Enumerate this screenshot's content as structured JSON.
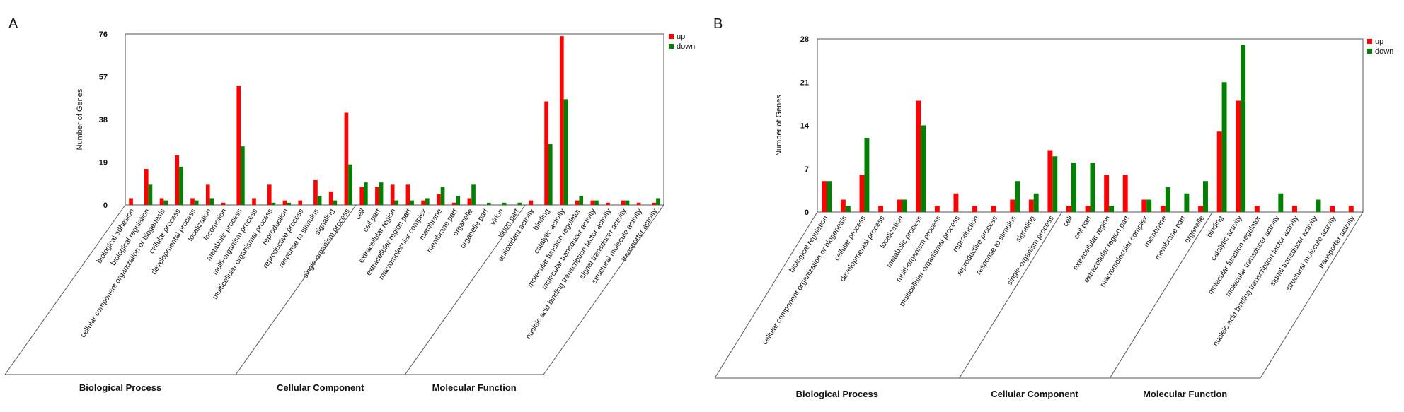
{
  "colors": {
    "up": "#ff0000",
    "down": "#008000",
    "axis": "#555555"
  },
  "chart_data": [
    {
      "panel": "A",
      "type": "bar",
      "title": "",
      "xlabel": "",
      "ylabel": "Number of Genes",
      "ylim": [
        0,
        76
      ],
      "yticks": [
        "0",
        "19",
        "38",
        "57",
        "76"
      ],
      "legend": [
        "up",
        "down"
      ],
      "categories": [
        "biological adhesion",
        "biological regulation",
        "cellular component organization or biogenesis",
        "cellular process",
        "developmental process",
        "localization",
        "locomotion",
        "metabolic process",
        "multi-organism process",
        "multicellular organismal process",
        "reproduction",
        "reproductive process",
        "response to stimulus",
        "signaling",
        "single-organism process",
        "cell",
        "cell part",
        "extracellular region",
        "extracellular region part",
        "macromolecular complex",
        "membrane",
        "membrane part",
        "organelle",
        "organelle part",
        "virion",
        "virion part",
        "antioxidant activity",
        "binding",
        "catalytic activity",
        "molecular function regulator",
        "molecular transducer activity",
        "nucleic acid binding transcription factor activity",
        "signal transducer activity",
        "structural molecule activity",
        "transporter activity"
      ],
      "series": [
        {
          "name": "up",
          "values": [
            3,
            16,
            3,
            22,
            3,
            9,
            1,
            53,
            3,
            9,
            2,
            2,
            11,
            6,
            41,
            8,
            8,
            9,
            9,
            2,
            5,
            1,
            3,
            0,
            0,
            0,
            2,
            46,
            75,
            2,
            2,
            1,
            2,
            1,
            1
          ]
        },
        {
          "name": "down",
          "values": [
            0,
            9,
            2,
            17,
            2,
            3,
            0,
            26,
            0,
            1,
            1,
            0,
            4,
            2,
            18,
            10,
            10,
            2,
            2,
            3,
            8,
            4,
            9,
            1,
            1,
            1,
            0,
            27,
            47,
            4,
            2,
            0,
            2,
            0,
            3
          ]
        }
      ],
      "groups": [
        {
          "label": "Biological Process",
          "start": 0,
          "end": 14
        },
        {
          "label": "Cellular Component",
          "start": 15,
          "end": 25
        },
        {
          "label": "Molecular Function",
          "start": 26,
          "end": 34
        }
      ]
    },
    {
      "panel": "B",
      "type": "bar",
      "title": "",
      "xlabel": "",
      "ylabel": "Number of Genes",
      "ylim": [
        0,
        28
      ],
      "yticks": [
        "0",
        "7",
        "14",
        "21",
        "28"
      ],
      "legend": [
        "up",
        "down"
      ],
      "categories": [
        "biological regulation",
        "cellular component organization or biogenesis",
        "cellular process",
        "developmental process",
        "localization",
        "metabolic process",
        "multi-organism process",
        "multicellular organismal process",
        "reproduction",
        "reproductive process",
        "response to stimulus",
        "signaling",
        "single-organism process",
        "cell",
        "cell part",
        "extracellular region",
        "extracellular region part",
        "macromolecular complex",
        "membrane",
        "membrane part",
        "organelle",
        "binding",
        "catalytic activity",
        "molecular function regulator",
        "molecular transducer activity",
        "nucleic acid binding transcription factor activity",
        "signal transducer activity",
        "structural molecule activity",
        "transporter activity"
      ],
      "series": [
        {
          "name": "up",
          "values": [
            5,
            2,
            6,
            1,
            2,
            18,
            1,
            3,
            1,
            1,
            2,
            2,
            10,
            1,
            1,
            6,
            6,
            2,
            1,
            0,
            1,
            13,
            18,
            1,
            0,
            1,
            0,
            1,
            1
          ]
        },
        {
          "name": "down",
          "values": [
            5,
            1,
            12,
            0,
            2,
            14,
            0,
            0,
            0,
            0,
            5,
            3,
            9,
            8,
            8,
            1,
            0,
            2,
            4,
            3,
            5,
            21,
            27,
            0,
            3,
            0,
            2,
            0,
            0
          ]
        }
      ],
      "groups": [
        {
          "label": "Biological Process",
          "start": 0,
          "end": 12
        },
        {
          "label": "Cellular Component",
          "start": 13,
          "end": 20
        },
        {
          "label": "Molecular Function",
          "start": 21,
          "end": 28
        }
      ]
    }
  ]
}
